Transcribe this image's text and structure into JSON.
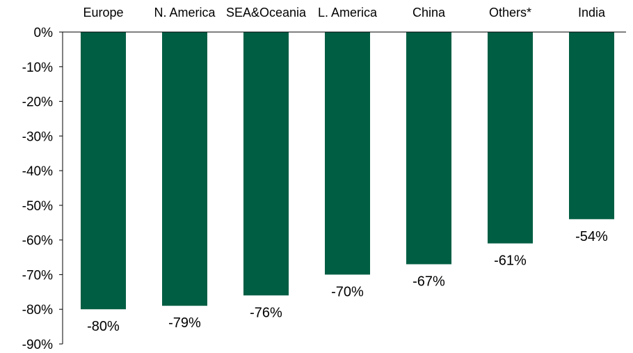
{
  "chart_data": {
    "type": "bar",
    "categories": [
      "Europe",
      "N. America",
      "SEA&Oceania",
      "L. America",
      "China",
      "Others*",
      "India"
    ],
    "values": [
      -80,
      -79,
      -76,
      -70,
      -67,
      -61,
      -54
    ],
    "data_labels": [
      "-80%",
      "-79%",
      "-76%",
      "-70%",
      "-67%",
      "-61%",
      "-54%"
    ],
    "ylim": [
      -90,
      0
    ],
    "yticks": [
      0,
      -10,
      -20,
      -30,
      -40,
      -50,
      -60,
      -70,
      -80,
      -90
    ],
    "ytick_labels": [
      "0%",
      "-10%",
      "-20%",
      "-30%",
      "-40%",
      "-50%",
      "-60%",
      "-70%",
      "-80%",
      "-90%"
    ],
    "category_axis_position": "top",
    "bar_color": "#005e43",
    "axis_color": "#000000",
    "grid": false,
    "title": "",
    "xlabel": "",
    "ylabel": ""
  }
}
